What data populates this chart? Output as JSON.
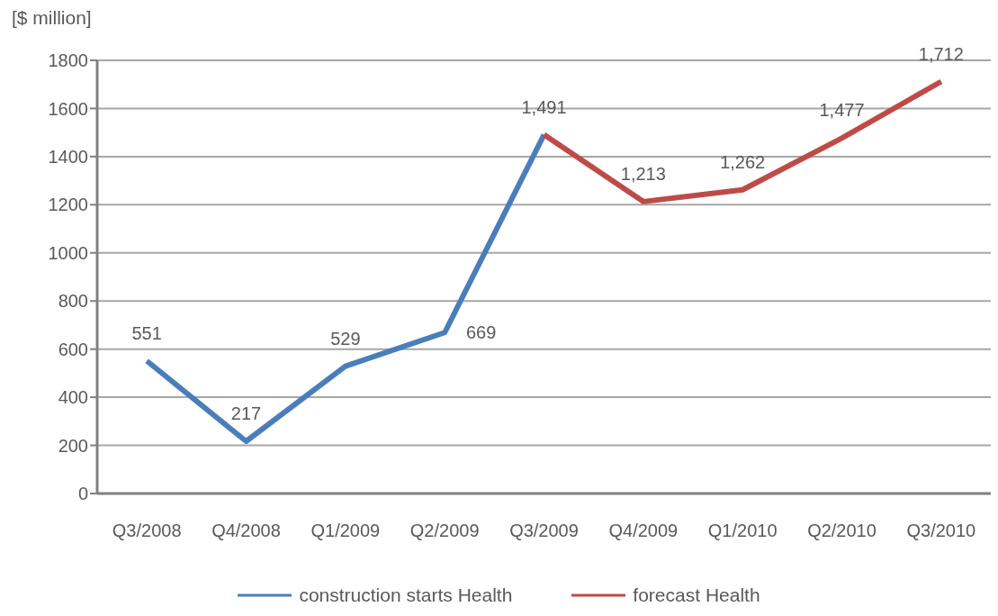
{
  "chart_data": {
    "type": "line",
    "ylabel": "[$ million]",
    "categories": [
      "Q3/2008",
      "Q4/2008",
      "Q1/2009",
      "Q2/2009",
      "Q3/2009",
      "Q4/2009",
      "Q1/2010",
      "Q2/2010",
      "Q3/2010"
    ],
    "series": [
      {
        "name": "construction starts Health",
        "color": "#4a7ebb",
        "values": [
          551,
          217,
          529,
          669,
          1491,
          null,
          null,
          null,
          null
        ],
        "value_labels": [
          "551",
          "217",
          "529",
          "669",
          null,
          null,
          null,
          null,
          null
        ]
      },
      {
        "name": "forecast Health",
        "color": "#be4b48",
        "values": [
          null,
          null,
          null,
          null,
          1491,
          1213,
          1262,
          1477,
          1712
        ],
        "value_labels": [
          null,
          null,
          null,
          null,
          "1,491",
          "1,213",
          "1,262",
          "1,477",
          "1,712"
        ]
      }
    ],
    "ylim": [
      0,
      1800
    ],
    "yticks": [
      0,
      200,
      400,
      600,
      800,
      1000,
      1200,
      1400,
      1600,
      1800
    ],
    "grid": "y",
    "legend": "bottom",
    "marker": "none"
  }
}
